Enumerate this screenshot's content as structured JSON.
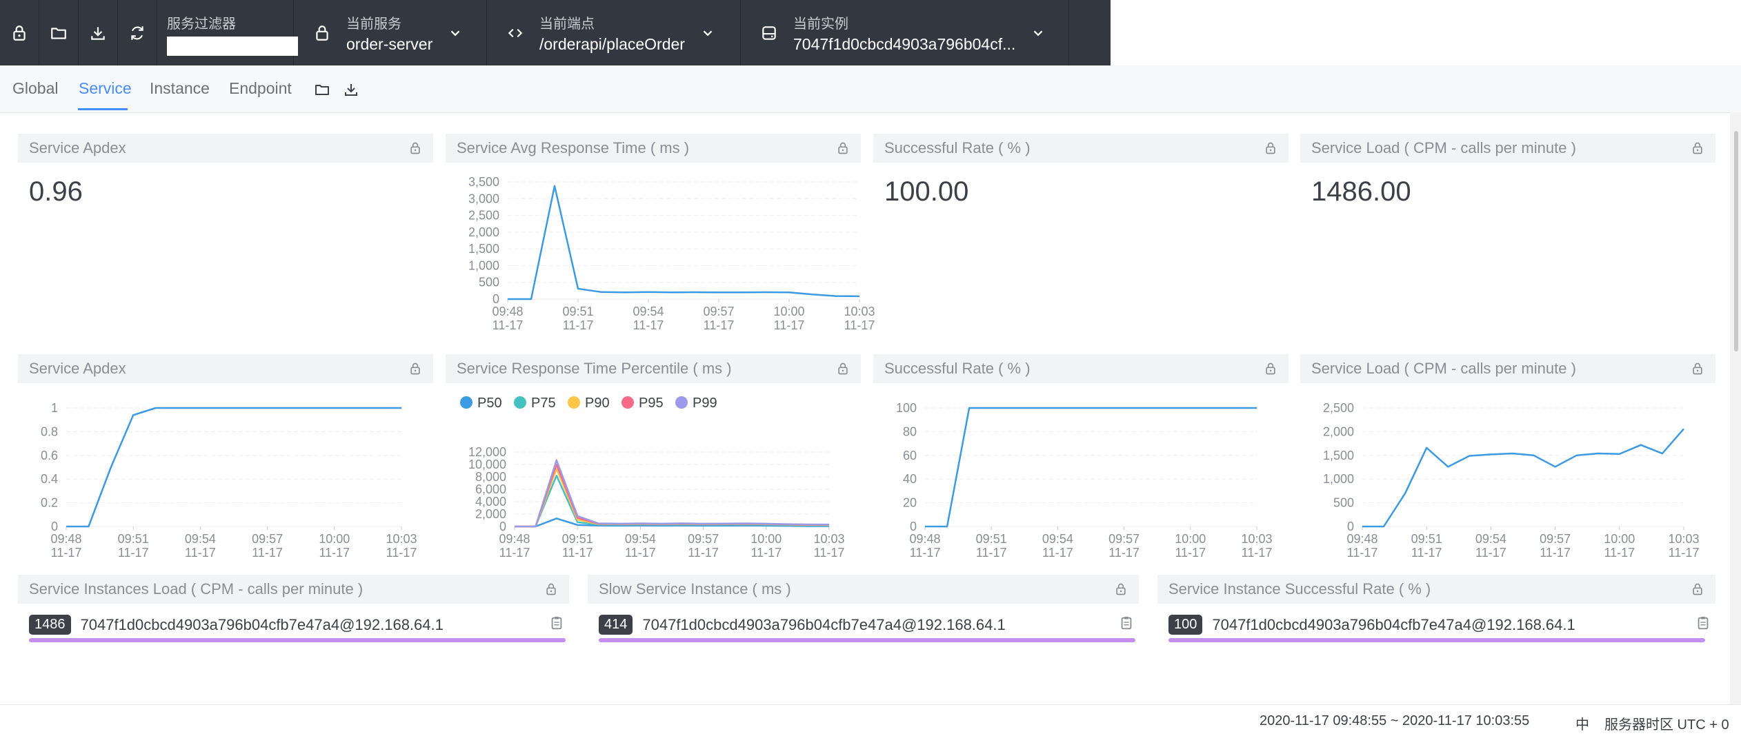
{
  "topbar": {
    "filter_label": "服务过滤器",
    "filter_value": "",
    "service": {
      "label": "当前服务",
      "value": "order-server"
    },
    "endpoint": {
      "label": "当前端点",
      "value": "/orderapi/placeOrder"
    },
    "instance": {
      "label": "当前实例",
      "value": "7047f1d0cbcd4903a796b04cf..."
    }
  },
  "tabs": [
    "Global",
    "Service",
    "Instance",
    "Endpoint"
  ],
  "active_tab": "Service",
  "panels": {
    "apdex": {
      "title": "Service Apdex",
      "value": "0.96"
    },
    "avg_resp": {
      "title": "Service Avg Response Time ( ms )"
    },
    "success": {
      "title": "Successful Rate ( % )",
      "value": "100.00"
    },
    "load": {
      "title": "Service Load ( CPM - calls per minute )",
      "value": "1486.00"
    },
    "apdex2": {
      "title": "Service Apdex"
    },
    "percentile": {
      "title": "Service Response Time Percentile ( ms )"
    },
    "success2": {
      "title": "Successful Rate ( % )"
    },
    "load2": {
      "title": "Service Load ( CPM - calls per minute )"
    },
    "inst_load": {
      "title": "Service Instances Load ( CPM - calls per minute )",
      "badge": "1486",
      "instance": "7047f1d0cbcd4903a796b04cfb7e47a4@192.168.64.1"
    },
    "slow_inst": {
      "title": "Slow Service Instance ( ms )",
      "badge": "414",
      "instance": "7047f1d0cbcd4903a796b04cfb7e47a4@192.168.64.1"
    },
    "inst_success": {
      "title": "Service Instance Successful Rate ( % )",
      "badge": "100",
      "instance": "7047f1d0cbcd4903a796b04cfb7e47a4@192.168.64.1"
    }
  },
  "footer": {
    "time_range": "2020-11-17 09:48:55 ~ 2020-11-17 10:03:55",
    "lang": "中",
    "timezone": "服务器时区 UTC + 0"
  },
  "colors": {
    "accent": "#448dfe",
    "line": "#3b9ae1",
    "topbar": "#333840",
    "bar": "#c48ff0",
    "p50": "#3b9ae1",
    "p75": "#45c1c1",
    "p90": "#ffc64a",
    "p95": "#f76b88",
    "p99": "#9a9ae8"
  },
  "chart_data": [
    {
      "id": "avg_resp",
      "type": "line",
      "x": [
        "09:48 11-17",
        "09:49 11-17",
        "09:50 11-17",
        "09:51 11-17",
        "09:52 11-17",
        "09:53 11-17",
        "09:54 11-17",
        "09:55 11-17",
        "09:56 11-17",
        "09:57 11-17",
        "09:58 11-17",
        "09:59 11-17",
        "10:00 11-17",
        "10:01 11-17",
        "10:02 11-17",
        "10:03 11-17"
      ],
      "tick_labels": [
        [
          "09:48",
          "11-17"
        ],
        [
          "09:51",
          "11-17"
        ],
        [
          "09:54",
          "11-17"
        ],
        [
          "09:57",
          "11-17"
        ],
        [
          "10:00",
          "11-17"
        ],
        [
          "10:03",
          "11-17"
        ]
      ],
      "y_ticks": [
        "0",
        "500",
        "1,000",
        "1,500",
        "2,000",
        "2,500",
        "3,000",
        "3,500"
      ],
      "ylim": [
        0,
        3500
      ],
      "series": [
        {
          "values": [
            0,
            0,
            3380,
            310,
            210,
            200,
            210,
            200,
            205,
            200,
            200,
            205,
            200,
            140,
            90,
            85
          ]
        }
      ]
    },
    {
      "id": "apdex",
      "type": "line",
      "x": [
        "09:48",
        "09:49",
        "09:50",
        "09:51",
        "09:52",
        "09:53",
        "09:54",
        "09:55",
        "09:56",
        "09:57",
        "09:58",
        "09:59",
        "10:00",
        "10:01",
        "10:02",
        "10:03"
      ],
      "tick_labels": [
        [
          "09:48",
          "11-17"
        ],
        [
          "09:51",
          "11-17"
        ],
        [
          "09:54",
          "11-17"
        ],
        [
          "09:57",
          "11-17"
        ],
        [
          "10:00",
          "11-17"
        ],
        [
          "10:03",
          "11-17"
        ]
      ],
      "y_ticks": [
        "0",
        "0.2",
        "0.4",
        "0.6",
        "0.8",
        "1"
      ],
      "ylim": [
        0,
        1
      ],
      "series": [
        {
          "values": [
            0,
            0,
            0.5,
            0.94,
            1,
            1,
            1,
            1,
            1,
            1,
            1,
            1,
            1,
            1,
            1,
            1
          ]
        }
      ]
    },
    {
      "id": "percentile",
      "type": "line",
      "x": [
        "09:48",
        "09:49",
        "09:50",
        "09:51",
        "09:52",
        "09:53",
        "09:54",
        "09:55",
        "09:56",
        "09:57",
        "09:58",
        "09:59",
        "10:00",
        "10:01",
        "10:02",
        "10:03"
      ],
      "tick_labels": [
        [
          "09:48",
          "11-17"
        ],
        [
          "09:51",
          "11-17"
        ],
        [
          "09:54",
          "11-17"
        ],
        [
          "09:57",
          "11-17"
        ],
        [
          "10:00",
          "11-17"
        ],
        [
          "10:03",
          "11-17"
        ]
      ],
      "y_ticks": [
        "0",
        "2,000",
        "4,000",
        "6,000",
        "8,000",
        "10,000",
        "12,000"
      ],
      "ylim": [
        0,
        12000
      ],
      "legend": [
        "P50",
        "P75",
        "P90",
        "P95",
        "P99"
      ],
      "series": [
        {
          "name": "P50",
          "values": [
            0,
            0,
            1300,
            250,
            150,
            140,
            150,
            140,
            150,
            140,
            140,
            150,
            140,
            100,
            60,
            60
          ]
        },
        {
          "name": "P75",
          "values": [
            0,
            0,
            8200,
            700,
            300,
            280,
            300,
            280,
            300,
            280,
            290,
            300,
            280,
            200,
            150,
            140
          ]
        },
        {
          "name": "P90",
          "values": [
            0,
            0,
            9300,
            1100,
            400,
            380,
            400,
            380,
            400,
            380,
            390,
            400,
            380,
            300,
            250,
            240
          ]
        },
        {
          "name": "P95",
          "values": [
            0,
            0,
            10000,
            1400,
            450,
            420,
            450,
            420,
            460,
            420,
            430,
            450,
            420,
            340,
            290,
            280
          ]
        },
        {
          "name": "P99",
          "values": [
            0,
            0,
            10700,
            1700,
            500,
            460,
            500,
            460,
            520,
            460,
            470,
            500,
            460,
            380,
            330,
            320
          ]
        }
      ]
    },
    {
      "id": "success",
      "type": "line",
      "x": [
        "09:48",
        "09:49",
        "09:50",
        "09:51",
        "09:52",
        "09:53",
        "09:54",
        "09:55",
        "09:56",
        "09:57",
        "09:58",
        "09:59",
        "10:00",
        "10:01",
        "10:02",
        "10:03"
      ],
      "tick_labels": [
        [
          "09:48",
          "11-17"
        ],
        [
          "09:51",
          "11-17"
        ],
        [
          "09:54",
          "11-17"
        ],
        [
          "09:57",
          "11-17"
        ],
        [
          "10:00",
          "11-17"
        ],
        [
          "10:03",
          "11-17"
        ]
      ],
      "y_ticks": [
        "0",
        "20",
        "40",
        "60",
        "80",
        "100"
      ],
      "ylim": [
        0,
        100
      ],
      "series": [
        {
          "values": [
            0,
            0,
            100,
            100,
            100,
            100,
            100,
            100,
            100,
            100,
            100,
            100,
            100,
            100,
            100,
            100
          ]
        }
      ]
    },
    {
      "id": "load",
      "type": "line",
      "x": [
        "09:48",
        "09:49",
        "09:50",
        "09:51",
        "09:52",
        "09:53",
        "09:54",
        "09:55",
        "09:56",
        "09:57",
        "09:58",
        "09:59",
        "10:00",
        "10:01",
        "10:02",
        "10:03"
      ],
      "tick_labels": [
        [
          "09:48",
          "11-17"
        ],
        [
          "09:51",
          "11-17"
        ],
        [
          "09:54",
          "11-17"
        ],
        [
          "09:57",
          "11-17"
        ],
        [
          "10:00",
          "11-17"
        ],
        [
          "10:03",
          "11-17"
        ]
      ],
      "y_ticks": [
        "0",
        "500",
        "1,000",
        "1,500",
        "2,000",
        "2,500"
      ],
      "ylim": [
        0,
        2500
      ],
      "series": [
        {
          "values": [
            0,
            0,
            700,
            1660,
            1260,
            1490,
            1520,
            1540,
            1500,
            1260,
            1500,
            1540,
            1530,
            1720,
            1540,
            2060
          ]
        }
      ]
    }
  ]
}
